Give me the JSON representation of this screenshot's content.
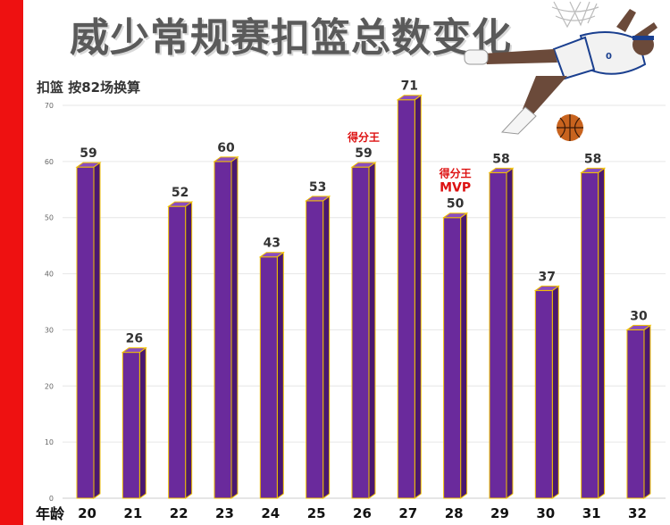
{
  "title": "威少常规赛扣篮总数变化",
  "colors": {
    "bar_front": "#6a2a9c",
    "bar_side": "#4a1870",
    "bar_top": "#8a4cc0",
    "bar_edge": "#f2c200",
    "annotation": "#dd1111",
    "strip": "#ee1111"
  },
  "chart_data": {
    "type": "bar",
    "title": "威少常规赛扣篮总数变化",
    "ylabel": "扣篮 按82场换算",
    "xlabel": "年龄",
    "categories": [
      "20",
      "21",
      "22",
      "23",
      "24",
      "25",
      "26",
      "27",
      "28",
      "29",
      "30",
      "31",
      "32"
    ],
    "values": [
      59,
      26,
      52,
      60,
      43,
      53,
      59,
      71,
      50,
      58,
      37,
      58,
      30
    ],
    "ylim": [
      0,
      70
    ],
    "yticks": [
      0,
      10,
      20,
      30,
      40,
      50,
      60,
      70
    ],
    "grid": true,
    "annotations": [
      {
        "category": "26",
        "lines": [
          "得分王"
        ]
      },
      {
        "category": "28",
        "lines": [
          "得分王",
          "MVP"
        ]
      }
    ]
  }
}
